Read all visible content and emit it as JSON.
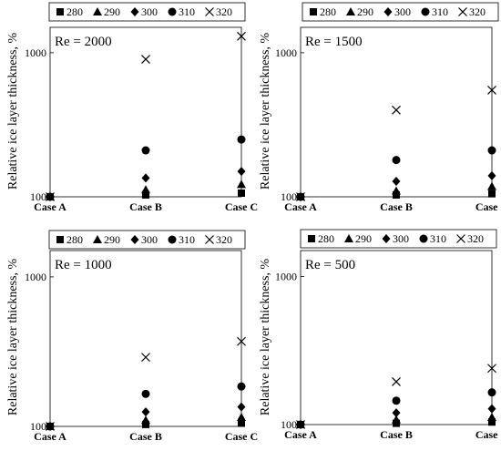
{
  "chart_data": [
    {
      "type": "scatter",
      "annotation": "Re = 2000",
      "ylabel": "Relative ice layer thickness, %",
      "xlabel": "",
      "categories": [
        "Case A",
        "Case B",
        "Case C"
      ],
      "y_scale": "log",
      "ylim": [
        100,
        1500
      ],
      "y_tick_labels": [
        "100",
        "1000"
      ],
      "y_tick_values": [
        100,
        1000
      ],
      "legend_position": "top",
      "series": [
        {
          "name": "280",
          "marker": "square",
          "values": [
            100,
            103,
            106
          ]
        },
        {
          "name": "290",
          "marker": "triangle",
          "values": [
            100,
            112,
            122
          ]
        },
        {
          "name": "300",
          "marker": "diamond",
          "values": [
            100,
            135,
            150
          ]
        },
        {
          "name": "310",
          "marker": "circle",
          "values": [
            100,
            210,
            250
          ]
        },
        {
          "name": "320",
          "marker": "cross",
          "values": [
            100,
            900,
            1300
          ]
        }
      ]
    },
    {
      "type": "scatter",
      "annotation": "Re = 1500",
      "ylabel": "Relative ice layer thickness, %",
      "xlabel": "",
      "categories": [
        "Case A",
        "Case B",
        "Case C"
      ],
      "y_scale": "log",
      "ylim": [
        100,
        1500
      ],
      "y_tick_labels": [
        "100",
        "1000"
      ],
      "y_tick_values": [
        100,
        1000
      ],
      "legend_position": "top",
      "series": [
        {
          "name": "280",
          "marker": "square",
          "values": [
            100,
            103,
            105
          ]
        },
        {
          "name": "290",
          "marker": "triangle",
          "values": [
            100,
            110,
            118
          ]
        },
        {
          "name": "300",
          "marker": "diamond",
          "values": [
            100,
            128,
            140
          ]
        },
        {
          "name": "310",
          "marker": "circle",
          "values": [
            100,
            180,
            210
          ]
        },
        {
          "name": "320",
          "marker": "cross",
          "values": [
            100,
            400,
            550
          ]
        }
      ]
    },
    {
      "type": "scatter",
      "annotation": "Re = 1000",
      "ylabel": "Relative ice layer thickness, %",
      "xlabel": "",
      "categories": [
        "Case A",
        "Case B",
        "Case C"
      ],
      "y_scale": "log",
      "ylim": [
        100,
        1500
      ],
      "y_tick_labels": [
        "100",
        "1000"
      ],
      "y_tick_values": [
        100,
        1000
      ],
      "legend_position": "top",
      "series": [
        {
          "name": "280",
          "marker": "square",
          "values": [
            100,
            103,
            105
          ]
        },
        {
          "name": "290",
          "marker": "triangle",
          "values": [
            100,
            110,
            115
          ]
        },
        {
          "name": "300",
          "marker": "diamond",
          "values": [
            100,
            125,
            135
          ]
        },
        {
          "name": "310",
          "marker": "circle",
          "values": [
            100,
            165,
            185
          ]
        },
        {
          "name": "320",
          "marker": "cross",
          "values": [
            100,
            290,
            370
          ]
        }
      ]
    },
    {
      "type": "scatter",
      "annotation": "Re = 500",
      "ylabel": "Relative ice layer thickness, %",
      "xlabel": "",
      "categories": [
        "Case A",
        "Case B",
        "Case C"
      ],
      "y_scale": "log",
      "ylim": [
        100,
        1500
      ],
      "y_tick_labels": [
        "100",
        "1000"
      ],
      "y_tick_values": [
        100,
        1000
      ],
      "legend_position": "top",
      "series": [
        {
          "name": "280",
          "marker": "square",
          "values": [
            100,
            102,
            104
          ]
        },
        {
          "name": "290",
          "marker": "triangle",
          "values": [
            100,
            108,
            112
          ]
        },
        {
          "name": "300",
          "marker": "diamond",
          "values": [
            100,
            120,
            128
          ]
        },
        {
          "name": "310",
          "marker": "circle",
          "values": [
            100,
            145,
            165
          ]
        },
        {
          "name": "320",
          "marker": "cross",
          "values": [
            100,
            195,
            240
          ]
        }
      ]
    }
  ]
}
